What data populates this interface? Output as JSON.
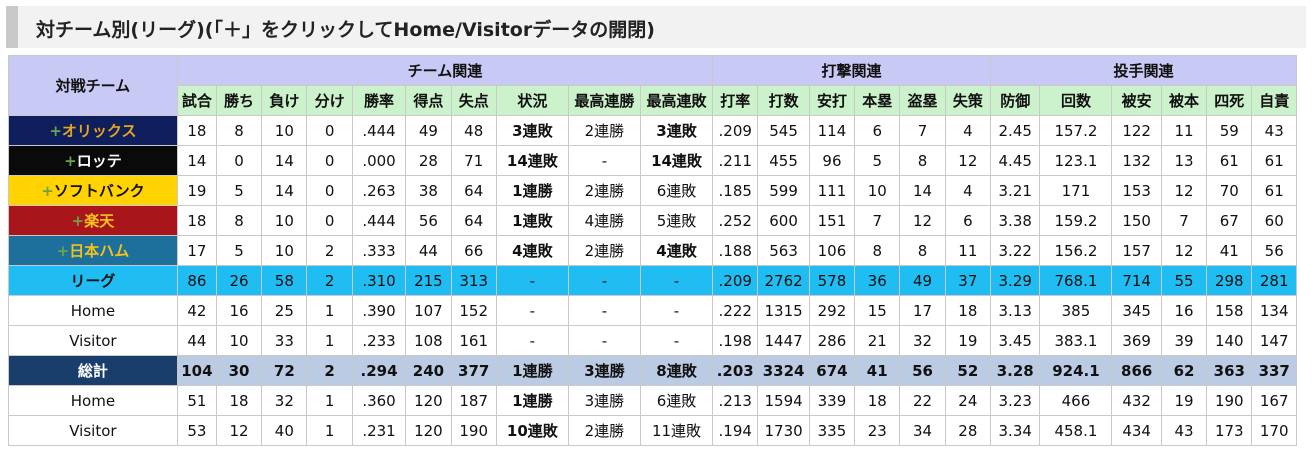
{
  "title": "対チーム別(リーグ)(「＋」をクリックしてHome/Visitorデータの開閉)",
  "header": {
    "team_col": "対戦チーム",
    "groups": [
      "チーム関連",
      "打撃関連",
      "投手関連"
    ],
    "columns": [
      "試合",
      "勝ち",
      "負け",
      "分け",
      "勝率",
      "得点",
      "失点",
      "状況",
      "最高連勝",
      "最高連敗",
      "打率",
      "打数",
      "安打",
      "本塁",
      "盗塁",
      "失策",
      "防御",
      "回数",
      "被安",
      "被本",
      "四死",
      "自責"
    ]
  },
  "colors": {
    "orix": "#0f1f5e",
    "orix_text": "#e8a51a",
    "lotte": "#0a0a0a",
    "lotte_text": "#ffffff",
    "softbank": "#ffd200",
    "softbank_text": "#111111",
    "rakuten": "#a8161b",
    "rakuten_text": "#f3c21b",
    "nipponham": "#1d6f9c",
    "nipponham_text": "#f3c21b",
    "league": "#1fbdf2",
    "total": "#1a3e6c",
    "total_row": "#bccbe4",
    "streak_loss": "#1b35c8",
    "streak_win": "#e01818",
    "plus_icon": "#6ba34a"
  },
  "rows": [
    {
      "type": "team",
      "key": "orix",
      "expander": "+",
      "name": "オリックス",
      "cells": [
        "18",
        "8",
        "10",
        "0",
        ".444",
        "49",
        "48",
        "3連敗",
        "2連勝",
        "3連敗",
        ".209",
        "545",
        "114",
        "6",
        "7",
        "4",
        "2.45",
        "157.2",
        "122",
        "11",
        "59",
        "43"
      ],
      "hl": {
        "7": "blue",
        "9": "blue"
      }
    },
    {
      "type": "team",
      "key": "lotte",
      "expander": "+",
      "name": "ロッテ",
      "cells": [
        "14",
        "0",
        "14",
        "0",
        ".000",
        "28",
        "71",
        "14連敗",
        "-",
        "14連敗",
        ".211",
        "455",
        "96",
        "5",
        "8",
        "12",
        "4.45",
        "123.1",
        "132",
        "13",
        "61",
        "61"
      ],
      "hl": {
        "7": "blue",
        "9": "blue"
      }
    },
    {
      "type": "team",
      "key": "softbank",
      "expander": "+",
      "name": "ソフトバンク",
      "cells": [
        "19",
        "5",
        "14",
        "0",
        ".263",
        "38",
        "64",
        "1連勝",
        "2連勝",
        "6連敗",
        ".185",
        "599",
        "111",
        "10",
        "14",
        "4",
        "3.21",
        "171",
        "153",
        "12",
        "70",
        "61"
      ],
      "hl": {
        "7": "red"
      }
    },
    {
      "type": "team",
      "key": "rakuten",
      "expander": "+",
      "name": "楽天",
      "cells": [
        "18",
        "8",
        "10",
        "0",
        ".444",
        "56",
        "64",
        "1連敗",
        "4連勝",
        "5連敗",
        ".252",
        "600",
        "151",
        "7",
        "12",
        "6",
        "3.38",
        "159.2",
        "150",
        "7",
        "67",
        "60"
      ],
      "hl": {
        "7": "blue"
      }
    },
    {
      "type": "team",
      "key": "nipponham",
      "expander": "+",
      "name": "日本ハム",
      "cells": [
        "17",
        "5",
        "10",
        "2",
        ".333",
        "44",
        "66",
        "4連敗",
        "2連勝",
        "4連敗",
        ".188",
        "563",
        "106",
        "8",
        "8",
        "11",
        "3.22",
        "156.2",
        "157",
        "12",
        "41",
        "56"
      ],
      "hl": {
        "7": "blue",
        "9": "blue"
      }
    },
    {
      "type": "league",
      "name": "リーグ",
      "cells": [
        "86",
        "26",
        "58",
        "2",
        ".310",
        "215",
        "313",
        "-",
        "-",
        "-",
        ".209",
        "2762",
        "578",
        "36",
        "49",
        "37",
        "3.29",
        "768.1",
        "714",
        "55",
        "298",
        "281"
      ],
      "hl": {}
    },
    {
      "type": "sub",
      "name": "Home",
      "cells": [
        "42",
        "16",
        "25",
        "1",
        ".390",
        "107",
        "152",
        "-",
        "-",
        "-",
        ".222",
        "1315",
        "292",
        "15",
        "17",
        "18",
        "3.13",
        "385",
        "345",
        "16",
        "158",
        "134"
      ],
      "hl": {}
    },
    {
      "type": "sub",
      "name": "Visitor",
      "cells": [
        "44",
        "10",
        "33",
        "1",
        ".233",
        "108",
        "161",
        "-",
        "-",
        "-",
        ".198",
        "1447",
        "286",
        "21",
        "32",
        "19",
        "3.45",
        "383.1",
        "369",
        "39",
        "140",
        "147"
      ],
      "hl": {}
    },
    {
      "type": "total",
      "name": "総計",
      "cells": [
        "104",
        "30",
        "72",
        "2",
        ".294",
        "240",
        "377",
        "1連勝",
        "3連勝",
        "8連敗",
        ".203",
        "3324",
        "674",
        "41",
        "56",
        "52",
        "3.28",
        "924.1",
        "866",
        "62",
        "363",
        "337"
      ],
      "hl": {
        "7": "red"
      }
    },
    {
      "type": "sub",
      "name": "Home",
      "cells": [
        "51",
        "18",
        "32",
        "1",
        ".360",
        "120",
        "187",
        "1連勝",
        "3連勝",
        "6連敗",
        ".213",
        "1594",
        "339",
        "18",
        "22",
        "24",
        "3.23",
        "466",
        "432",
        "19",
        "190",
        "167"
      ],
      "hl": {
        "7": "red"
      }
    },
    {
      "type": "sub",
      "name": "Visitor",
      "cells": [
        "53",
        "12",
        "40",
        "1",
        ".231",
        "120",
        "190",
        "10連敗",
        "2連勝",
        "11連敗",
        ".194",
        "1730",
        "335",
        "23",
        "34",
        "28",
        "3.34",
        "458.1",
        "434",
        "43",
        "173",
        "170"
      ],
      "hl": {
        "7": "blue"
      }
    }
  ]
}
